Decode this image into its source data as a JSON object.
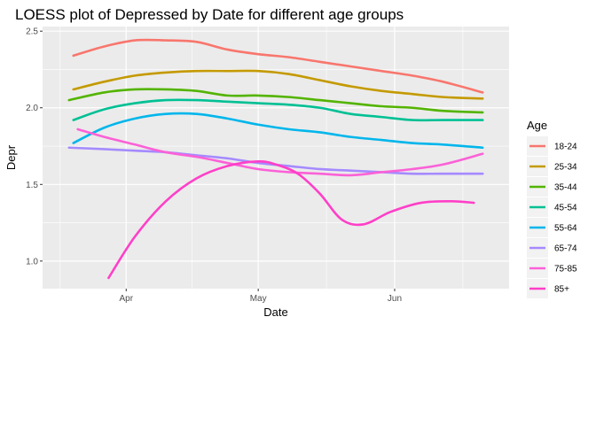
{
  "chart_data": {
    "type": "line",
    "title": "LOESS plot of Depressed by Date for different age groups",
    "xlabel": "Date",
    "ylabel": "Depr",
    "x_ticks": [
      {
        "label": "Apr",
        "value": "2020-04-01"
      },
      {
        "label": "May",
        "value": "2020-05-01"
      },
      {
        "label": "Jun",
        "value": "2020-06-01"
      }
    ],
    "y_ticks": [
      1.0,
      1.5,
      2.0,
      2.5
    ],
    "y_tick_labels": [
      "1.0",
      "1.5",
      "2.0",
      "2.5"
    ],
    "xlim": [
      "2020-03-13",
      "2020-06-27"
    ],
    "ylim": [
      0.82,
      2.53
    ],
    "grid": true,
    "legend": {
      "title": "Age",
      "placement": "right"
    },
    "series": [
      {
        "name": "18-24",
        "color": "#F8766D",
        "x": [
          "2020-03-20",
          "2020-03-27",
          "2020-04-03",
          "2020-04-10",
          "2020-04-17",
          "2020-04-24",
          "2020-05-01",
          "2020-05-08",
          "2020-05-15",
          "2020-05-22",
          "2020-05-29",
          "2020-06-05",
          "2020-06-12",
          "2020-06-21"
        ],
        "y": [
          2.34,
          2.4,
          2.44,
          2.44,
          2.43,
          2.38,
          2.35,
          2.33,
          2.3,
          2.27,
          2.24,
          2.21,
          2.17,
          2.1
        ]
      },
      {
        "name": "25-34",
        "color": "#C49A00",
        "x": [
          "2020-03-20",
          "2020-03-27",
          "2020-04-03",
          "2020-04-10",
          "2020-04-17",
          "2020-04-24",
          "2020-05-01",
          "2020-05-08",
          "2020-05-15",
          "2020-05-22",
          "2020-05-29",
          "2020-06-05",
          "2020-06-12",
          "2020-06-21"
        ],
        "y": [
          2.12,
          2.17,
          2.21,
          2.23,
          2.24,
          2.24,
          2.24,
          2.22,
          2.18,
          2.14,
          2.11,
          2.09,
          2.07,
          2.06
        ]
      },
      {
        "name": "35-44",
        "color": "#53B400",
        "x": [
          "2020-03-19",
          "2020-03-27",
          "2020-04-03",
          "2020-04-10",
          "2020-04-17",
          "2020-04-24",
          "2020-05-01",
          "2020-05-08",
          "2020-05-15",
          "2020-05-22",
          "2020-05-29",
          "2020-06-05",
          "2020-06-12",
          "2020-06-21"
        ],
        "y": [
          2.05,
          2.1,
          2.12,
          2.12,
          2.11,
          2.08,
          2.08,
          2.07,
          2.05,
          2.03,
          2.01,
          2.0,
          1.98,
          1.97
        ]
      },
      {
        "name": "45-54",
        "color": "#00C094",
        "x": [
          "2020-03-20",
          "2020-03-27",
          "2020-04-03",
          "2020-04-10",
          "2020-04-17",
          "2020-04-24",
          "2020-05-01",
          "2020-05-08",
          "2020-05-15",
          "2020-05-22",
          "2020-05-29",
          "2020-06-05",
          "2020-06-12",
          "2020-06-21"
        ],
        "y": [
          1.92,
          1.99,
          2.03,
          2.05,
          2.05,
          2.04,
          2.03,
          2.02,
          2.0,
          1.96,
          1.94,
          1.92,
          1.92,
          1.92
        ]
      },
      {
        "name": "55-64",
        "color": "#00B6EB",
        "x": [
          "2020-03-20",
          "2020-03-27",
          "2020-04-03",
          "2020-04-10",
          "2020-04-17",
          "2020-04-24",
          "2020-05-01",
          "2020-05-08",
          "2020-05-15",
          "2020-05-22",
          "2020-05-29",
          "2020-06-05",
          "2020-06-12",
          "2020-06-21"
        ],
        "y": [
          1.77,
          1.87,
          1.93,
          1.96,
          1.96,
          1.93,
          1.89,
          1.86,
          1.84,
          1.81,
          1.79,
          1.77,
          1.76,
          1.74
        ]
      },
      {
        "name": "65-74",
        "color": "#A58AFF",
        "x": [
          "2020-03-19",
          "2020-03-27",
          "2020-04-03",
          "2020-04-10",
          "2020-04-17",
          "2020-04-24",
          "2020-05-01",
          "2020-05-08",
          "2020-05-15",
          "2020-05-22",
          "2020-05-29",
          "2020-06-05",
          "2020-06-12",
          "2020-06-21"
        ],
        "y": [
          1.74,
          1.73,
          1.72,
          1.71,
          1.69,
          1.67,
          1.64,
          1.62,
          1.6,
          1.59,
          1.58,
          1.57,
          1.57,
          1.57
        ]
      },
      {
        "name": "75-85",
        "color": "#FB61D7",
        "x": [
          "2020-03-21",
          "2020-03-27",
          "2020-04-03",
          "2020-04-10",
          "2020-04-17",
          "2020-04-24",
          "2020-05-01",
          "2020-05-08",
          "2020-05-15",
          "2020-05-22",
          "2020-05-29",
          "2020-06-05",
          "2020-06-12",
          "2020-06-21"
        ],
        "y": [
          1.86,
          1.81,
          1.76,
          1.71,
          1.68,
          1.64,
          1.6,
          1.58,
          1.57,
          1.56,
          1.58,
          1.6,
          1.63,
          1.7
        ]
      },
      {
        "name": "85+",
        "color": "#FF3FC8",
        "x": [
          "2020-03-28",
          "2020-04-03",
          "2020-04-10",
          "2020-04-17",
          "2020-04-24",
          "2020-05-01",
          "2020-05-05",
          "2020-05-10",
          "2020-05-15",
          "2020-05-20",
          "2020-05-25",
          "2020-05-31",
          "2020-06-07",
          "2020-06-14",
          "2020-06-19"
        ],
        "y": [
          0.89,
          1.16,
          1.39,
          1.54,
          1.62,
          1.65,
          1.63,
          1.57,
          1.44,
          1.27,
          1.24,
          1.32,
          1.38,
          1.39,
          1.38
        ]
      }
    ]
  }
}
